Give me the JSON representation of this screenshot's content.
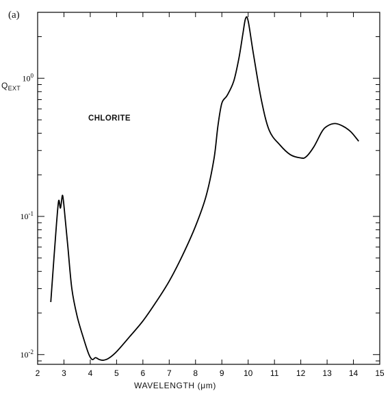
{
  "chart_data": {
    "type": "line",
    "panel_label": "(a)",
    "annotation": "CHLORITE",
    "ylabel": "Q",
    "ylabel_sub": "EXT",
    "xlabel": "WAVELENGTH (μm)",
    "xlim": [
      2,
      15
    ],
    "ylim": [
      0.0085,
      3.0
    ],
    "yscale": "log",
    "x_ticks": [
      2,
      3,
      4,
      5,
      6,
      7,
      8,
      9,
      10,
      11,
      12,
      13,
      14,
      15
    ],
    "x_tick_labels": [
      "2",
      "3",
      "4",
      "5",
      "6",
      "7",
      "8",
      "9",
      "10",
      "11",
      "12",
      "13",
      "14",
      "15"
    ],
    "y_major_ticks": [
      {
        "value": 0.01,
        "base": "10",
        "exp": "-2"
      },
      {
        "value": 0.1,
        "base": "10",
        "exp": "-1"
      },
      {
        "value": 1,
        "base": "10",
        "exp": "0"
      }
    ],
    "grid": false,
    "series": [
      {
        "color": "#000000",
        "x": [
          2.5,
          2.62,
          2.72,
          2.8,
          2.86,
          2.9,
          2.94,
          2.98,
          3.05,
          3.15,
          3.3,
          3.5,
          3.75,
          3.95,
          4.08,
          4.2,
          4.35,
          4.5,
          4.7,
          5.0,
          5.5,
          6.0,
          6.5,
          7.0,
          7.5,
          8.0,
          8.4,
          8.7,
          8.85,
          9.0,
          9.2,
          9.45,
          9.65,
          9.8,
          9.9,
          10.0,
          10.2,
          10.5,
          10.8,
          11.2,
          11.6,
          12.0,
          12.2,
          12.5,
          12.8,
          13.0,
          13.3,
          13.6,
          13.9,
          14.2
        ],
        "y": [
          0.024,
          0.05,
          0.09,
          0.13,
          0.115,
          0.125,
          0.142,
          0.13,
          0.095,
          0.06,
          0.03,
          0.019,
          0.013,
          0.01,
          0.0092,
          0.0095,
          0.0092,
          0.0091,
          0.0094,
          0.0105,
          0.0135,
          0.0175,
          0.024,
          0.034,
          0.052,
          0.085,
          0.14,
          0.26,
          0.45,
          0.66,
          0.75,
          0.95,
          1.4,
          2.1,
          2.7,
          2.6,
          1.5,
          0.7,
          0.42,
          0.33,
          0.28,
          0.265,
          0.27,
          0.32,
          0.41,
          0.45,
          0.47,
          0.45,
          0.41,
          0.35
        ]
      }
    ]
  }
}
